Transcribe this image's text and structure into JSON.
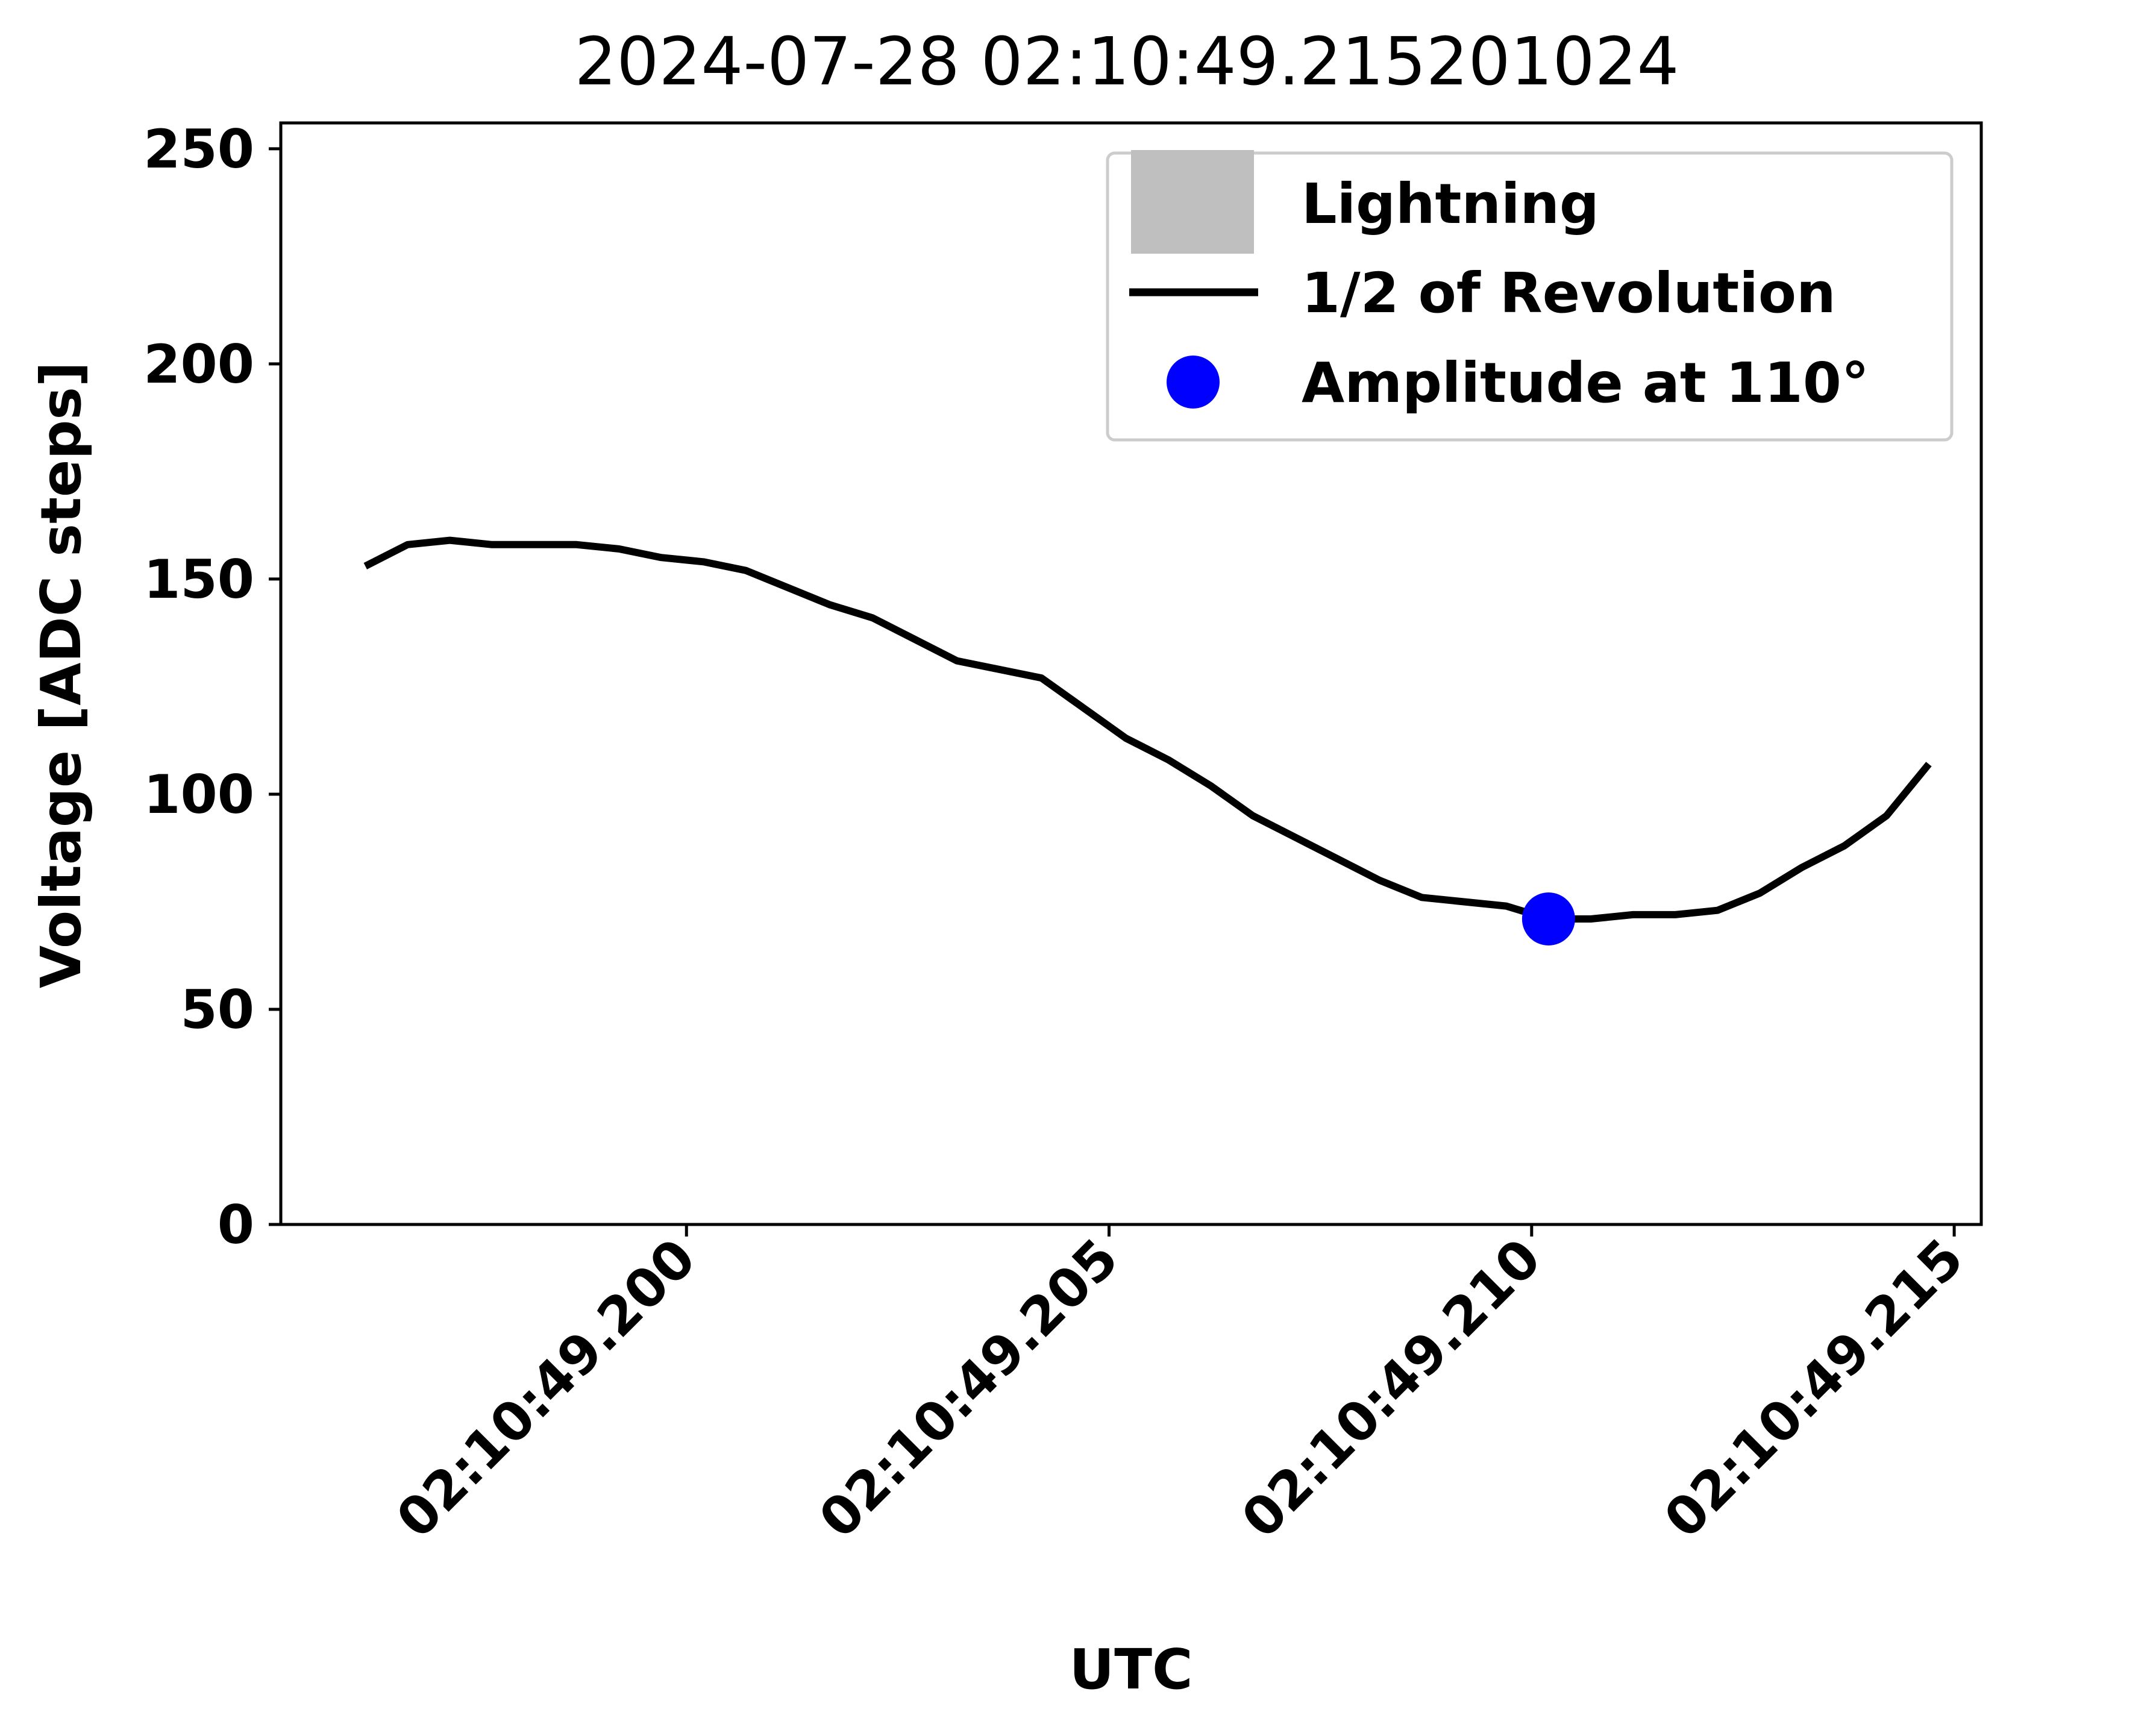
{
  "chart_data": {
    "type": "line",
    "title": "2024-07-28 02:10:49.215201024",
    "xlabel": "UTC",
    "ylabel": "Voltage  [ADC steps]",
    "x_unit": "seconds past 02:10:49 UTC",
    "xlim": [
      49.1952,
      49.21532
    ],
    "ylim": [
      0,
      256
    ],
    "x_ticks": [
      49.2,
      49.205,
      49.21,
      49.215
    ],
    "x_tick_labels": [
      "02:10:49.200",
      "02:10:49.205",
      "02:10:49.210",
      "02:10:49.215"
    ],
    "y_ticks": [
      0,
      50,
      100,
      150,
      200,
      250
    ],
    "y_tick_labels": [
      "0",
      "50",
      "100",
      "150",
      "200",
      "250"
    ],
    "grid": false,
    "legend_position": "top-right",
    "legend": [
      {
        "label": "Lightning",
        "kind": "patch",
        "color": "#bfbfbf"
      },
      {
        "label": "1/2 of Revolution",
        "kind": "line",
        "color": "#000000"
      },
      {
        "label": "Amplitude at 110°",
        "kind": "marker",
        "color": "#0000ff"
      }
    ],
    "series": [
      {
        "name": "1/2 of Revolution",
        "color": "#000000",
        "x": [
          49.1962,
          49.1967,
          49.1972,
          49.1977,
          49.1982,
          49.1987,
          49.1992,
          49.1997,
          49.2002,
          49.2007,
          49.2012,
          49.2017,
          49.2022,
          49.2027,
          49.2032,
          49.2037,
          49.2042,
          49.2047,
          49.2052,
          49.2057,
          49.2062,
          49.2067,
          49.2072,
          49.2077,
          49.2082,
          49.2087,
          49.2092,
          49.2097,
          49.2102,
          49.2107,
          49.2112,
          49.2117,
          49.2122,
          49.2127,
          49.2132,
          49.2137,
          49.2142,
          49.2147
        ],
        "y": [
          153,
          158,
          159,
          158,
          158,
          158,
          157,
          155,
          154,
          152,
          148,
          144,
          141,
          136,
          131,
          129,
          127,
          120,
          113,
          108,
          102,
          95,
          90,
          85,
          80,
          76,
          75,
          74,
          71,
          71,
          72,
          72,
          73,
          77,
          83,
          88,
          95,
          107
        ]
      },
      {
        "name": "Amplitude at 110°",
        "color": "#0000ff",
        "x": [
          49.2102
        ],
        "y": [
          71
        ]
      }
    ]
  }
}
